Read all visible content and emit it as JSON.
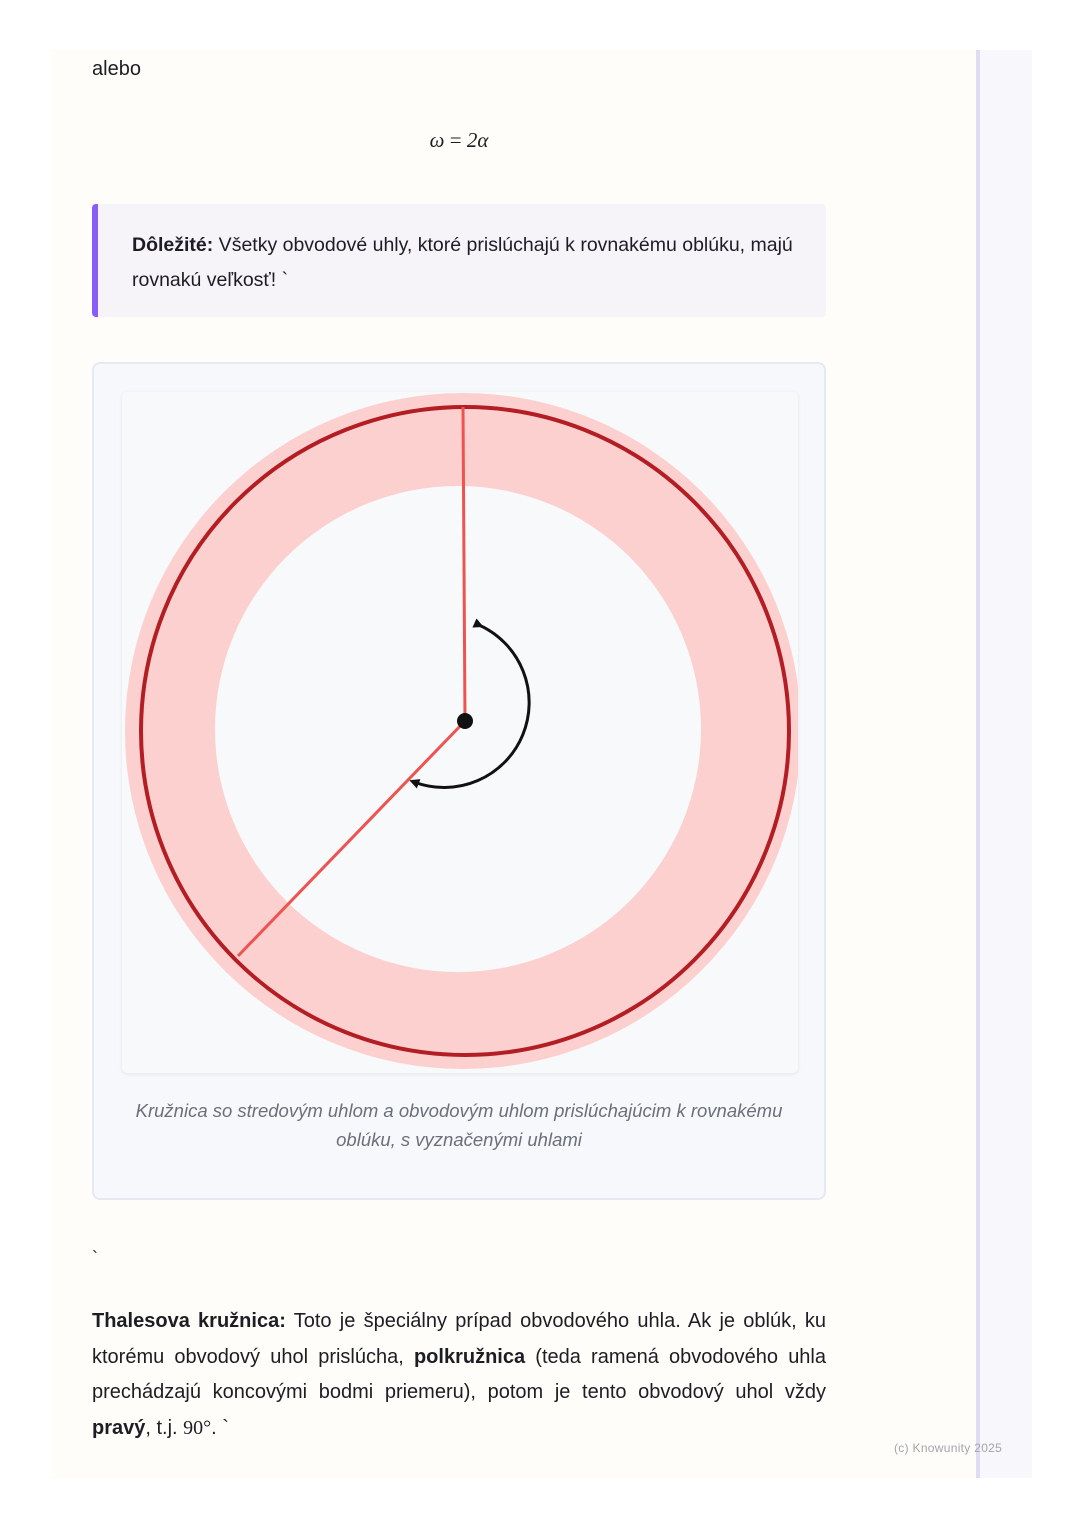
{
  "intro_word": "alebo",
  "formula": {
    "lhs": "ω",
    "eq": "=",
    "rhs": "2α"
  },
  "callout": {
    "label": "Dôležité:",
    "text": " Všetky obvodové uhly, ktoré prislúchajú k rovnakému oblúku, majú rovnakú veľkosť! `",
    "accent_color": "#8b5cf6"
  },
  "figure": {
    "caption": "Kružnica so stredovým uhlom a obvodovým uhlom prislúchajúcim k rovnakému oblúku, s vyznačenými uhlami",
    "colors": {
      "circle": "#b21e24",
      "band": "#fdd0d0",
      "radius": "#ef5350",
      "arc": "#111111"
    }
  },
  "stray_tick": "`",
  "paragraph": {
    "b1": "Thalesova kružnica:",
    "t1": " Toto je špeciálny prípad obvodového uhla. Ak je oblúk, ku ktorému obvodový uhol prislúcha, ",
    "b2": "polkružnica",
    "t2": " (teda ramená obvodového uhla prechádzajú koncovými bodmi priemeru), potom je tento obvodový uhol vždy ",
    "b3": "pravý",
    "t3": ", t.j. ",
    "deg": "90°",
    "t4": ". `"
  },
  "footer": {
    "copyright": "(c) Knowunity 2025"
  }
}
